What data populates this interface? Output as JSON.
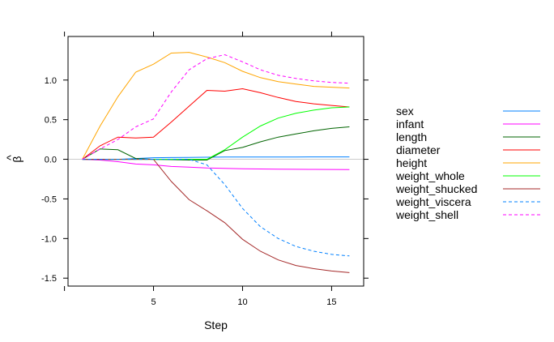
{
  "chart_data": {
    "type": "line",
    "xlabel": "Step",
    "ylabel": "β̂",
    "ylabel_base": "β",
    "ylabel_accent": "^",
    "xlim": [
      0.2,
      16.8
    ],
    "ylim": [
      -1.6,
      1.55
    ],
    "xticks": [
      5,
      10,
      15
    ],
    "yticks": [
      -1.5,
      -1.0,
      -0.5,
      0.0,
      0.5,
      1.0
    ],
    "ytick_labels": [
      "-1.5",
      "-1.0",
      "-0.5",
      "0.0",
      "0.5",
      "1.0"
    ],
    "x": [
      1,
      2,
      3,
      4,
      5,
      6,
      7,
      8,
      9,
      10,
      11,
      12,
      13,
      14,
      15,
      16
    ],
    "series": [
      {
        "name": "sex",
        "color": "#0080ff",
        "dash": "solid",
        "values": [
          0,
          0,
          0,
          0.01,
          0.02,
          0.022,
          0.024,
          0.026,
          0.028,
          0.028,
          0.029,
          0.029,
          0.029,
          0.03,
          0.03,
          0.03
        ]
      },
      {
        "name": "infant",
        "color": "#ff00ff",
        "dash": "solid",
        "values": [
          0,
          -0.01,
          -0.03,
          -0.06,
          -0.07,
          -0.09,
          -0.1,
          -0.11,
          -0.115,
          -0.12,
          -0.122,
          -0.124,
          -0.126,
          -0.127,
          -0.128,
          -0.13
        ]
      },
      {
        "name": "length",
        "color": "#006400",
        "dash": "solid",
        "values": [
          0,
          0.13,
          0.12,
          0.01,
          0.0,
          -0.005,
          -0.01,
          -0.01,
          0.11,
          0.15,
          0.22,
          0.28,
          0.32,
          0.36,
          0.39,
          0.41
        ]
      },
      {
        "name": "diameter",
        "color": "#ff0000",
        "dash": "solid",
        "values": [
          0,
          0.17,
          0.28,
          0.27,
          0.28,
          0.47,
          0.67,
          0.87,
          0.86,
          0.89,
          0.84,
          0.78,
          0.73,
          0.7,
          0.68,
          0.66
        ]
      },
      {
        "name": "height",
        "color": "#ffa500",
        "dash": "solid",
        "values": [
          0,
          0.42,
          0.79,
          1.1,
          1.2,
          1.34,
          1.35,
          1.29,
          1.22,
          1.11,
          1.03,
          0.98,
          0.95,
          0.92,
          0.91,
          0.9
        ]
      },
      {
        "name": "weight_whole",
        "color": "#00ff00",
        "dash": "solid",
        "values": [
          0,
          0,
          0,
          0,
          0,
          0,
          0,
          0,
          0.12,
          0.28,
          0.42,
          0.52,
          0.58,
          0.62,
          0.65,
          0.66
        ]
      },
      {
        "name": "weight_shucked",
        "color": "#a52a2a",
        "dash": "solid",
        "values": [
          0,
          0,
          0,
          0,
          0,
          -0.28,
          -0.51,
          -0.65,
          -0.8,
          -1.01,
          -1.16,
          -1.27,
          -1.34,
          -1.38,
          -1.41,
          -1.43
        ]
      },
      {
        "name": "weight_viscera",
        "color": "#0080ff",
        "dash": "dashed",
        "values": [
          0,
          0,
          0,
          0,
          0,
          0,
          0,
          -0.07,
          -0.32,
          -0.62,
          -0.85,
          -1.0,
          -1.1,
          -1.16,
          -1.2,
          -1.22
        ]
      },
      {
        "name": "weight_shell",
        "color": "#ff00ff",
        "dash": "dashed",
        "values": [
          0,
          0.13,
          0.25,
          0.41,
          0.51,
          0.85,
          1.13,
          1.27,
          1.32,
          1.23,
          1.13,
          1.06,
          1.02,
          0.99,
          0.97,
          0.96
        ]
      }
    ]
  }
}
